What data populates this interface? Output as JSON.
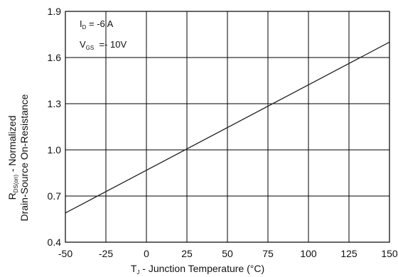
{
  "chart_data": {
    "type": "line",
    "xlabel": {
      "symbol": "T",
      "subscript": "J",
      "text": " - Junction Temperature (°C)"
    },
    "ylabel": {
      "line1_symbol": "R",
      "line1_subscript": "DS(on)",
      "line1_text": " - Normalized",
      "line2": "Drain-Source On-Resistance"
    },
    "xlim": [
      -50,
      150
    ],
    "ylim": [
      0.4,
      1.9
    ],
    "x_ticks": [
      -50,
      -25,
      0,
      25,
      50,
      75,
      100,
      125,
      150
    ],
    "y_ticks": [
      "0.4",
      "0.7",
      "1.0",
      "1.3",
      "1.6",
      "1.9"
    ],
    "grid": true,
    "series": [
      {
        "x": [
          -50,
          150
        ],
        "y": [
          0.59,
          1.7
        ]
      }
    ],
    "annotations": [
      {
        "symbol": "I",
        "subscript": "D",
        "text": " = -6 A"
      },
      {
        "symbol": "V",
        "subscript": "GS",
        "text": "  =- 10V"
      }
    ]
  }
}
